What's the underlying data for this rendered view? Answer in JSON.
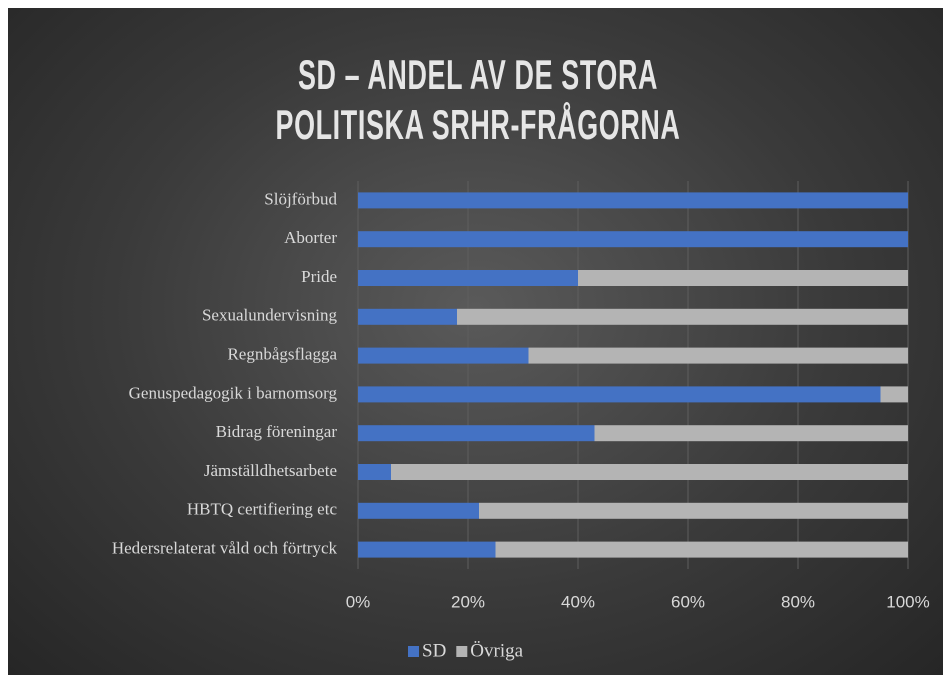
{
  "chart_data": {
    "type": "bar",
    "orientation": "horizontal",
    "stacked": true,
    "title": "SD – ANDEL AV DE STORA POLITISKA SRHR-FRÅGORNA",
    "categories": [
      "Slöjförbud",
      "Aborter",
      "Pride",
      "Sexualundervisning",
      "Regnbågsflagga",
      "Genuspedagogik i barnomsorg",
      "Bidrag föreningar",
      "Jämställdhetsarbete",
      "HBTQ certifiering etc",
      "Hedersrelaterat våld och förtryck"
    ],
    "series": [
      {
        "name": "SD",
        "color": "#4472c4",
        "values": [
          100,
          100,
          40,
          18,
          31,
          95,
          43,
          6,
          22,
          25
        ]
      },
      {
        "name": "Övriga",
        "color": "#b4b4b4",
        "values": [
          0,
          0,
          60,
          82,
          69,
          5,
          57,
          94,
          78,
          75
        ]
      }
    ],
    "xlim": [
      0,
      100
    ],
    "xticks": [
      {
        "value": 0,
        "label": "0%"
      },
      {
        "value": 20,
        "label": "20%"
      },
      {
        "value": 40,
        "label": "40%"
      },
      {
        "value": 60,
        "label": "60%"
      },
      {
        "value": 80,
        "label": "80%"
      },
      {
        "value": 100,
        "label": "100%"
      }
    ],
    "grid": true,
    "legend": "bottom"
  }
}
